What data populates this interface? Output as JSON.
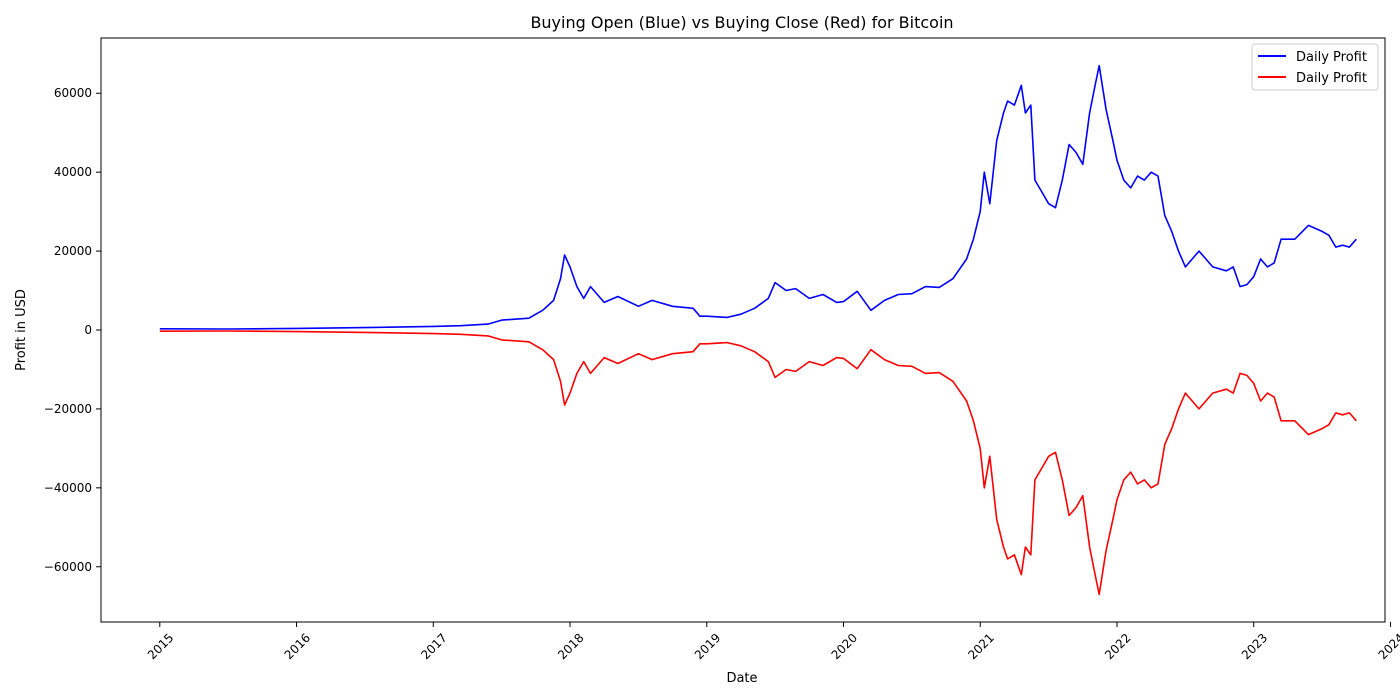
{
  "chart_data": {
    "type": "line",
    "title": "Buying Open (Blue) vs Buying Close (Red) for Bitcoin",
    "xlabel": "Date",
    "ylabel": "Profit in USD",
    "xlim": [
      2014.57,
      2023.96
    ],
    "ylim": [
      -74000,
      74000
    ],
    "x_ticks": [
      {
        "value": 2015,
        "label": "2015"
      },
      {
        "value": 2016,
        "label": "2016"
      },
      {
        "value": 2017,
        "label": "2017"
      },
      {
        "value": 2018,
        "label": "2018"
      },
      {
        "value": 2019,
        "label": "2019"
      },
      {
        "value": 2020,
        "label": "2020"
      },
      {
        "value": 2021,
        "label": "2021"
      },
      {
        "value": 2022,
        "label": "2022"
      },
      {
        "value": 2023,
        "label": "2023"
      },
      {
        "value": 2024,
        "label": "2024"
      }
    ],
    "y_ticks": [
      {
        "value": -60000,
        "label": "−60000"
      },
      {
        "value": -40000,
        "label": "−40000"
      },
      {
        "value": -20000,
        "label": "−20000"
      },
      {
        "value": 0,
        "label": "0"
      },
      {
        "value": 20000,
        "label": "20000"
      },
      {
        "value": 40000,
        "label": "40000"
      },
      {
        "value": 60000,
        "label": "60000"
      }
    ],
    "grid": false,
    "legend_position": "top-right",
    "series": [
      {
        "name": "Daily Profit",
        "color": "#0000ff",
        "points": [
          [
            2015.0,
            300
          ],
          [
            2015.5,
            250
          ],
          [
            2016.0,
            400
          ],
          [
            2016.5,
            600
          ],
          [
            2017.0,
            900
          ],
          [
            2017.2,
            1100
          ],
          [
            2017.4,
            1500
          ],
          [
            2017.5,
            2500
          ],
          [
            2017.7,
            3000
          ],
          [
            2017.75,
            4000
          ],
          [
            2017.8,
            5000
          ],
          [
            2017.88,
            7500
          ],
          [
            2017.93,
            13000
          ],
          [
            2017.96,
            19000
          ],
          [
            2018.0,
            16000
          ],
          [
            2018.05,
            11000
          ],
          [
            2018.1,
            8000
          ],
          [
            2018.15,
            11000
          ],
          [
            2018.25,
            7000
          ],
          [
            2018.35,
            8500
          ],
          [
            2018.5,
            6000
          ],
          [
            2018.6,
            7500
          ],
          [
            2018.75,
            6000
          ],
          [
            2018.9,
            5500
          ],
          [
            2018.95,
            3500
          ],
          [
            2019.0,
            3500
          ],
          [
            2019.15,
            3200
          ],
          [
            2019.25,
            4000
          ],
          [
            2019.35,
            5500
          ],
          [
            2019.45,
            8000
          ],
          [
            2019.5,
            12000
          ],
          [
            2019.58,
            10000
          ],
          [
            2019.65,
            10500
          ],
          [
            2019.75,
            8000
          ],
          [
            2019.85,
            9000
          ],
          [
            2019.95,
            7000
          ],
          [
            2020.0,
            7200
          ],
          [
            2020.1,
            9800
          ],
          [
            2020.2,
            5000
          ],
          [
            2020.3,
            7500
          ],
          [
            2020.4,
            9000
          ],
          [
            2020.5,
            9200
          ],
          [
            2020.6,
            11000
          ],
          [
            2020.7,
            10800
          ],
          [
            2020.8,
            13000
          ],
          [
            2020.9,
            18000
          ],
          [
            2020.95,
            23000
          ],
          [
            2021.0,
            30000
          ],
          [
            2021.03,
            40000
          ],
          [
            2021.07,
            32000
          ],
          [
            2021.12,
            48000
          ],
          [
            2021.17,
            55000
          ],
          [
            2021.2,
            58000
          ],
          [
            2021.25,
            57000
          ],
          [
            2021.3,
            62000
          ],
          [
            2021.33,
            55000
          ],
          [
            2021.37,
            57000
          ],
          [
            2021.4,
            38000
          ],
          [
            2021.45,
            35000
          ],
          [
            2021.5,
            32000
          ],
          [
            2021.55,
            31000
          ],
          [
            2021.6,
            38000
          ],
          [
            2021.65,
            47000
          ],
          [
            2021.7,
            45000
          ],
          [
            2021.75,
            42000
          ],
          [
            2021.8,
            55000
          ],
          [
            2021.84,
            62000
          ],
          [
            2021.87,
            67000
          ],
          [
            2021.92,
            56000
          ],
          [
            2021.97,
            48000
          ],
          [
            2022.0,
            43000
          ],
          [
            2022.05,
            38000
          ],
          [
            2022.1,
            36000
          ],
          [
            2022.15,
            39000
          ],
          [
            2022.2,
            38000
          ],
          [
            2022.25,
            40000
          ],
          [
            2022.3,
            39000
          ],
          [
            2022.35,
            29000
          ],
          [
            2022.4,
            25000
          ],
          [
            2022.45,
            20000
          ],
          [
            2022.5,
            16000
          ],
          [
            2022.6,
            20000
          ],
          [
            2022.7,
            16000
          ],
          [
            2022.8,
            15000
          ],
          [
            2022.85,
            16000
          ],
          [
            2022.9,
            11000
          ],
          [
            2022.95,
            11500
          ],
          [
            2023.0,
            13500
          ],
          [
            2023.05,
            18000
          ],
          [
            2023.1,
            16000
          ],
          [
            2023.15,
            17000
          ],
          [
            2023.2,
            23000
          ],
          [
            2023.3,
            23000
          ],
          [
            2023.4,
            26500
          ],
          [
            2023.5,
            25000
          ],
          [
            2023.55,
            24000
          ],
          [
            2023.6,
            21000
          ],
          [
            2023.65,
            21500
          ],
          [
            2023.7,
            21000
          ],
          [
            2023.75,
            23000
          ]
        ]
      },
      {
        "name": "Daily Profit",
        "color": "#ff0000",
        "mirror_of_series": 0
      }
    ]
  }
}
